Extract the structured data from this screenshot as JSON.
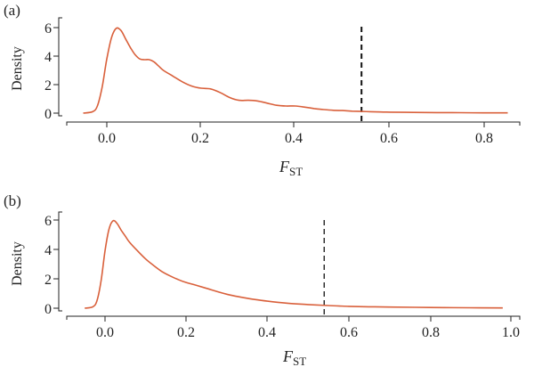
{
  "chart_data": [
    {
      "type": "line",
      "panel_label": "(a)",
      "ylabel": "Density",
      "xlabel_main": "F",
      "xlabel_sub": "ST",
      "xticks": [
        0.0,
        0.2,
        0.4,
        0.6,
        0.8
      ],
      "xtick_labels": [
        "0.0",
        "0.2",
        "0.4",
        "0.6",
        "0.8"
      ],
      "yticks": [
        0,
        2,
        4,
        6
      ],
      "ytick_labels": [
        "0",
        "2",
        "4",
        "6"
      ],
      "xlim": [
        -0.06,
        0.87
      ],
      "ylim": [
        -0.25,
        6.3
      ],
      "cutoff_x": 0.54,
      "series": [
        {
          "color": "#d9603b",
          "x": [
            -0.05,
            -0.03,
            -0.02,
            -0.01,
            0.0,
            0.01,
            0.02,
            0.03,
            0.04,
            0.05,
            0.06,
            0.07,
            0.08,
            0.09,
            0.1,
            0.11,
            0.12,
            0.14,
            0.16,
            0.18,
            0.2,
            0.22,
            0.24,
            0.26,
            0.28,
            0.3,
            0.32,
            0.34,
            0.36,
            0.38,
            0.4,
            0.42,
            0.44,
            0.46,
            0.48,
            0.5,
            0.52,
            0.54,
            0.56,
            0.58,
            0.6,
            0.65,
            0.7,
            0.75,
            0.8,
            0.85
          ],
          "y": [
            0.0,
            0.1,
            0.5,
            1.8,
            3.8,
            5.3,
            5.95,
            5.8,
            5.2,
            4.6,
            4.1,
            3.8,
            3.75,
            3.75,
            3.6,
            3.3,
            3.0,
            2.6,
            2.2,
            1.9,
            1.75,
            1.7,
            1.45,
            1.1,
            0.9,
            0.9,
            0.85,
            0.7,
            0.55,
            0.5,
            0.5,
            0.42,
            0.32,
            0.25,
            0.2,
            0.18,
            0.14,
            0.12,
            0.1,
            0.08,
            0.07,
            0.05,
            0.04,
            0.03,
            0.02,
            0.02
          ]
        }
      ]
    },
    {
      "type": "line",
      "panel_label": "(b)",
      "ylabel": "Density",
      "xlabel_main": "F",
      "xlabel_sub": "ST",
      "xticks": [
        0.0,
        0.2,
        0.4,
        0.6,
        0.8,
        1.0
      ],
      "xtick_labels": [
        "0.0",
        "0.2",
        "0.4",
        "0.6",
        "0.8",
        "1.0"
      ],
      "yticks": [
        0,
        2,
        4,
        6
      ],
      "ytick_labels": [
        "0",
        "2",
        "4",
        "6"
      ],
      "xlim": [
        -0.065,
        1.02
      ],
      "ylim": [
        -0.25,
        6.3
      ],
      "cutoff_x": 0.54,
      "series": [
        {
          "color": "#d9603b",
          "x": [
            -0.05,
            -0.03,
            -0.02,
            -0.01,
            0.0,
            0.01,
            0.02,
            0.03,
            0.04,
            0.05,
            0.06,
            0.08,
            0.1,
            0.12,
            0.14,
            0.16,
            0.18,
            0.2,
            0.22,
            0.25,
            0.3,
            0.35,
            0.4,
            0.45,
            0.5,
            0.55,
            0.6,
            0.65,
            0.7,
            0.8,
            0.9,
            0.98
          ],
          "y": [
            0.0,
            0.1,
            0.5,
            1.8,
            3.9,
            5.4,
            5.95,
            5.75,
            5.3,
            4.9,
            4.5,
            3.9,
            3.35,
            2.9,
            2.5,
            2.2,
            1.95,
            1.75,
            1.6,
            1.35,
            0.95,
            0.68,
            0.48,
            0.34,
            0.25,
            0.18,
            0.13,
            0.1,
            0.08,
            0.05,
            0.03,
            0.02
          ]
        }
      ]
    }
  ]
}
